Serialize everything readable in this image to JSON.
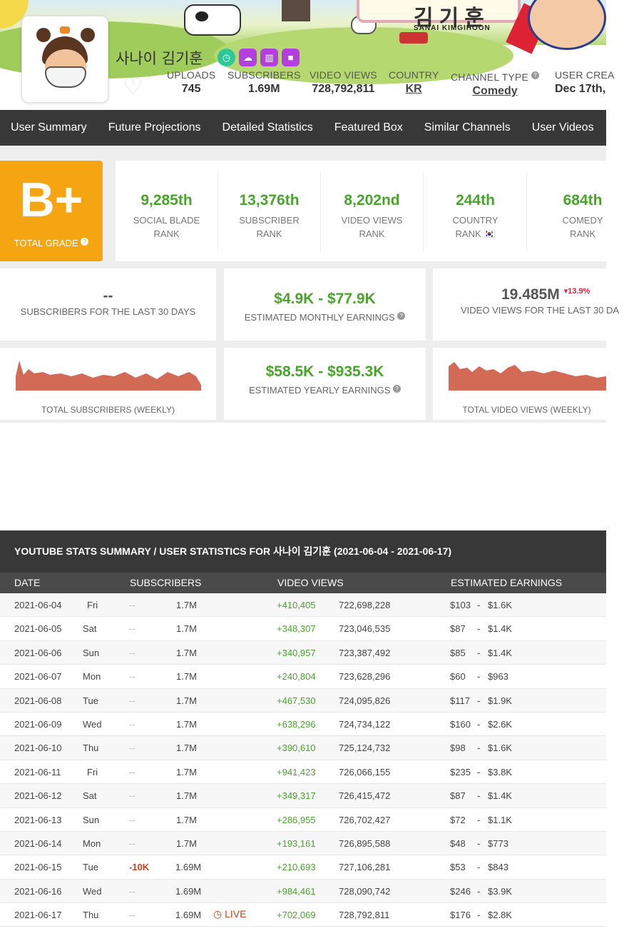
{
  "banner": {
    "sign_text": "김기훈",
    "caption": "SANAI KIMGIHOON"
  },
  "channel": {
    "name": "사나이 김기훈",
    "stats": [
      {
        "label": "UPLOADS",
        "value": "745"
      },
      {
        "label": "SUBSCRIBERS",
        "value": "1.69M"
      },
      {
        "label": "VIDEO VIEWS",
        "value": "728,792,811"
      },
      {
        "label": "COUNTRY",
        "value": "KR"
      },
      {
        "label": "CHANNEL TYPE",
        "value": "Comedy"
      },
      {
        "label": "USER CREA",
        "value": "Dec 17th,"
      }
    ]
  },
  "nav": [
    "User Summary",
    "Future Projections",
    "Detailed Statistics",
    "Featured Box",
    "Similar Channels",
    "User Videos"
  ],
  "grade": {
    "letter": "B+",
    "label": "TOTAL GRADE"
  },
  "ranks": [
    {
      "num": "9,285th",
      "l1": "SOCIAL BLADE",
      "l2": "RANK"
    },
    {
      "num": "13,376th",
      "l1": "SUBSCRIBER",
      "l2": "RANK"
    },
    {
      "num": "8,202nd",
      "l1": "VIDEO VIEWS",
      "l2": "RANK"
    },
    {
      "num": "244th",
      "l1": "COUNTRY",
      "l2": "RANK 🇰🇷"
    },
    {
      "num": "684th",
      "l1": "COMEDY",
      "l2": "RANK"
    }
  ],
  "cards": {
    "subs30": {
      "value": "--",
      "label": "SUBSCRIBERS FOR THE LAST 30 DAYS"
    },
    "monthly": {
      "value": "$4.9K  -  $77.9K",
      "label": "ESTIMATED MONTHLY EARNINGS"
    },
    "views30": {
      "value": "19.485M",
      "change": "▾13.9%",
      "label": "VIDEO VIEWS FOR THE LAST 30 DA"
    },
    "subs_weekly": {
      "label": "TOTAL SUBSCRIBERS (WEEKLY)"
    },
    "yearly": {
      "value": "$58.5K  -  $935.3K",
      "label": "ESTIMATED YEARLY EARNINGS"
    },
    "views_weekly": {
      "label": "TOTAL VIDEO VIEWS (WEEKLY)"
    }
  },
  "summary": {
    "title": "YOUTUBE STATS SUMMARY / USER STATISTICS FOR 사나이 김기훈 (2021-06-04 - 2021-06-17)",
    "headers": {
      "date": "DATE",
      "subs": "SUBSCRIBERS",
      "views": "VIDEO VIEWS",
      "earn": "ESTIMATED EARNINGS"
    },
    "rows": [
      {
        "date": "2021-06-04",
        "day": "Fri",
        "sd": "--",
        "subs": "1.7M",
        "vd": "+410,405",
        "views": "722,698,228",
        "elow": "$103",
        "ehigh": "$1.6K"
      },
      {
        "date": "2021-06-05",
        "day": "Sat",
        "sd": "--",
        "subs": "1.7M",
        "vd": "+348,307",
        "views": "723,046,535",
        "elow": "$87",
        "ehigh": "$1.4K"
      },
      {
        "date": "2021-06-06",
        "day": "Sun",
        "sd": "--",
        "subs": "1.7M",
        "vd": "+340,957",
        "views": "723,387,492",
        "elow": "$85",
        "ehigh": "$1.4K"
      },
      {
        "date": "2021-06-07",
        "day": "Mon",
        "sd": "--",
        "subs": "1.7M",
        "vd": "+240,804",
        "views": "723,628,296",
        "elow": "$60",
        "ehigh": "$963"
      },
      {
        "date": "2021-06-08",
        "day": "Tue",
        "sd": "--",
        "subs": "1.7M",
        "vd": "+467,530",
        "views": "724,095,826",
        "elow": "$117",
        "ehigh": "$1.9K"
      },
      {
        "date": "2021-06-09",
        "day": "Wed",
        "sd": "--",
        "subs": "1.7M",
        "vd": "+638,296",
        "views": "724,734,122",
        "elow": "$160",
        "ehigh": "$2.6K"
      },
      {
        "date": "2021-06-10",
        "day": "Thu",
        "sd": "--",
        "subs": "1.7M",
        "vd": "+390,610",
        "views": "725,124,732",
        "elow": "$98",
        "ehigh": "$1.6K"
      },
      {
        "date": "2021-06-11",
        "day": "Fri",
        "sd": "--",
        "subs": "1.7M",
        "vd": "+941,423",
        "views": "726,066,155",
        "elow": "$235",
        "ehigh": "$3.8K"
      },
      {
        "date": "2021-06-12",
        "day": "Sat",
        "sd": "--",
        "subs": "1.7M",
        "vd": "+349,317",
        "views": "726,415,472",
        "elow": "$87",
        "ehigh": "$1.4K"
      },
      {
        "date": "2021-06-13",
        "day": "Sun",
        "sd": "--",
        "subs": "1.7M",
        "vd": "+286,955",
        "views": "726,702,427",
        "elow": "$72",
        "ehigh": "$1.1K"
      },
      {
        "date": "2021-06-14",
        "day": "Mon",
        "sd": "--",
        "subs": "1.7M",
        "vd": "+193,161",
        "views": "726,895,588",
        "elow": "$48",
        "ehigh": "$773"
      },
      {
        "date": "2021-06-15",
        "day": "Tue",
        "sd": "-10K",
        "subs": "1.69M",
        "vd": "+210,693",
        "views": "727,106,281",
        "elow": "$53",
        "ehigh": "$843"
      },
      {
        "date": "2021-06-16",
        "day": "Wed",
        "sd": "--",
        "subs": "1.69M",
        "vd": "+984,461",
        "views": "728,090,742",
        "elow": "$246",
        "ehigh": "$3.9K"
      },
      {
        "date": "2021-06-17",
        "day": "Thu",
        "sd": "--",
        "subs": "1.69M",
        "live": "LIVE",
        "vd": "+702,069",
        "views": "728,792,811",
        "elow": "$176",
        "ehigh": "$2.8K"
      }
    ]
  },
  "colors": {
    "accent_green": "#48a52a",
    "grade_orange": "#f5a512",
    "nav_dark": "#383838",
    "chart_red": "#d26a56"
  }
}
